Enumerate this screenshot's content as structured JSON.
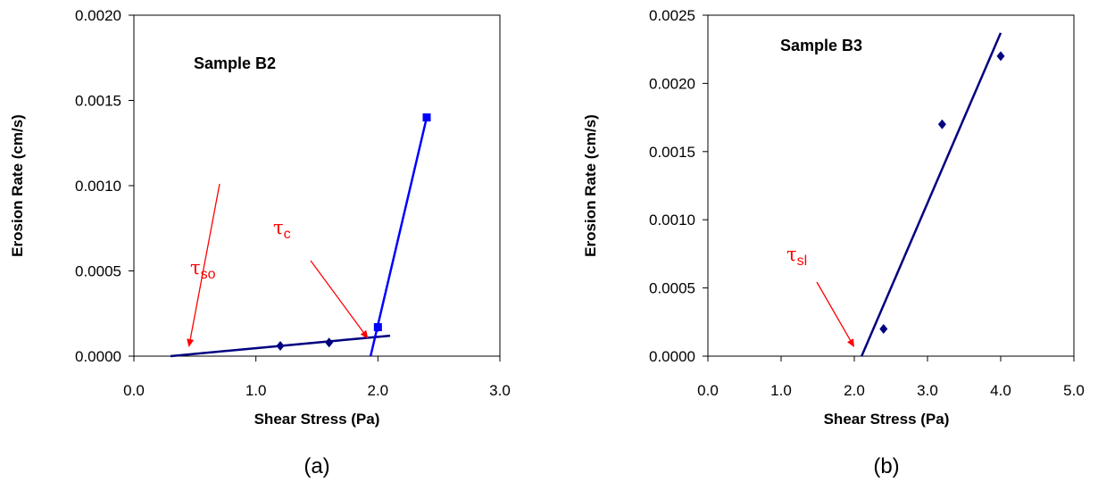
{
  "chart_data": [
    {
      "type": "scatter",
      "title": "Sample B2",
      "xlabel": "Shear Stress (Pa)",
      "ylabel": "Erosion Rate (cm/s)",
      "xlim": [
        0,
        3
      ],
      "ylim": [
        0,
        0.002
      ],
      "x_ticks": [
        "0.0",
        "1.0",
        "2.0",
        "3.0"
      ],
      "y_ticks": [
        "0.0000",
        "0.0005",
        "0.0010",
        "0.0015",
        "0.0020"
      ],
      "grid": false,
      "series": [
        {
          "marker": "diamond",
          "color": "#000080",
          "points": [
            [
              1.2,
              6e-05
            ],
            [
              1.6,
              8e-05
            ],
            [
              2.0,
              0.00017
            ]
          ]
        },
        {
          "marker": "square",
          "color": "#0000ff",
          "points": [
            [
              2.0,
              0.00017
            ],
            [
              2.4,
              0.0014
            ]
          ]
        }
      ],
      "trend_lines": [
        {
          "color": "#000080",
          "from": [
            0.3,
            0.0
          ],
          "to": [
            2.1,
            0.00012
          ]
        },
        {
          "color": "#0000ff",
          "from": [
            1.94,
            0.0
          ],
          "to": [
            2.4,
            0.0014
          ]
        }
      ],
      "annotations": [
        {
          "symbol": "τ",
          "sub": "so",
          "color": "#ff0000",
          "arrow_to": [
            0.45,
            0.0
          ]
        },
        {
          "symbol": "τ",
          "sub": "c",
          "color": "#ff0000",
          "arrow_to": [
            1.92,
            5e-05
          ]
        }
      ],
      "caption": "(a)"
    },
    {
      "type": "scatter",
      "title": "Sample B3",
      "xlabel": "Shear Stress (Pa)",
      "ylabel": "Erosion Rate (cm/s)",
      "xlim": [
        0,
        5
      ],
      "ylim": [
        0,
        0.0025
      ],
      "x_ticks": [
        "0.0",
        "1.0",
        "2.0",
        "3.0",
        "4.0",
        "5.0"
      ],
      "y_ticks": [
        "0.0000",
        "0.0005",
        "0.0010",
        "0.0015",
        "0.0020",
        "0.0025"
      ],
      "grid": false,
      "series": [
        {
          "marker": "diamond",
          "color": "#000080",
          "points": [
            [
              2.4,
              0.0002
            ],
            [
              3.2,
              0.0017
            ],
            [
              4.0,
              0.0022
            ]
          ]
        }
      ],
      "trend_lines": [
        {
          "color": "#000080",
          "from": [
            2.1,
            0.0
          ],
          "to": [
            4.0,
            0.00237
          ]
        }
      ],
      "annotations": [
        {
          "symbol": "τ",
          "sub": "sl",
          "color": "#ff0000",
          "arrow_to": [
            2.0,
            0.0
          ]
        }
      ],
      "caption": "(b)"
    }
  ]
}
